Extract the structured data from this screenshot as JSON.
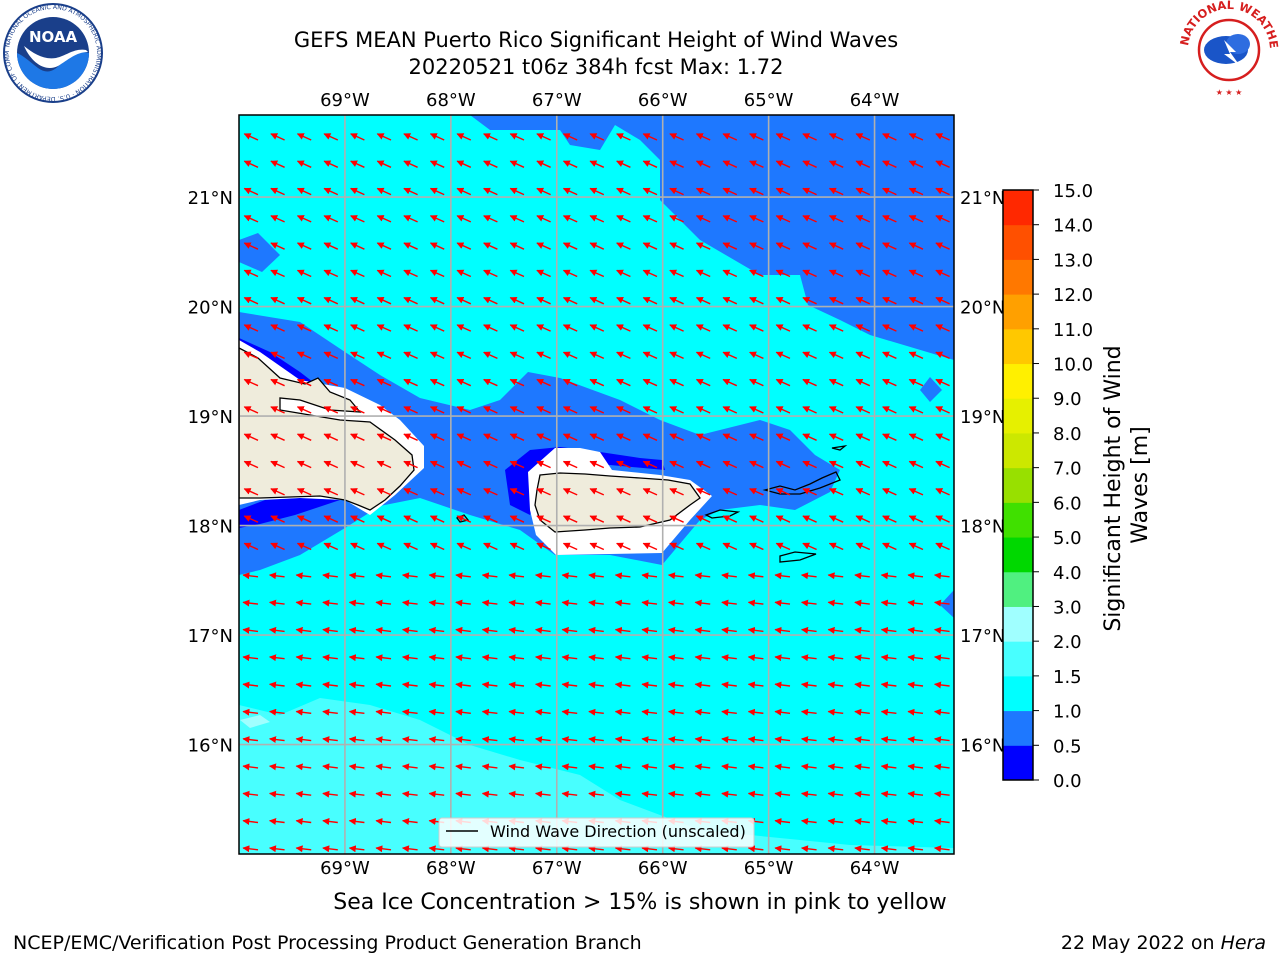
{
  "header": {
    "title_line1": "GEFS MEAN Puerto Rico Significant Height of Wind Waves",
    "title_line2": "20220521 t06z 384h fcst   Max: 1.72"
  },
  "logos": {
    "left": "noaa-logo",
    "left_text": "NOAA",
    "left_ring_text": "NATIONAL OCEANIC AND ATMOSPHERIC ADMINISTRATION · U.S. DEPARTMENT OF COMMERCE",
    "right": "nws-logo",
    "right_ring_text": "NATIONAL WEATHER SERVICE"
  },
  "map": {
    "lon_labels": [
      "69°W",
      "68°W",
      "67°W",
      "66°W",
      "65°W",
      "64°W"
    ],
    "lat_labels": [
      "21°N",
      "20°N",
      "19°N",
      "18°N",
      "17°N",
      "16°N"
    ],
    "lon_range": [
      -70.0,
      -63.25
    ],
    "lat_range": [
      15.0,
      21.75
    ],
    "vector_color": "#ff0000",
    "land_color": "#efecdc",
    "legend_label": "Wind Wave Direction (unscaled)"
  },
  "colorbar": {
    "label": "Significant Height of Wind Waves [m]",
    "ticks": [
      "0.0",
      "0.5",
      "1.0",
      "1.5",
      "2.0",
      "3.0",
      "4.0",
      "5.0",
      "6.0",
      "7.0",
      "8.0",
      "9.0",
      "10.0",
      "11.0",
      "12.0",
      "13.0",
      "14.0",
      "15.0"
    ],
    "colors": [
      "#0000ff",
      "#1e78ff",
      "#00ffff",
      "#48ffff",
      "#a0ffff",
      "#50f080",
      "#00d800",
      "#40e000",
      "#98e000",
      "#cce800",
      "#e6f000",
      "#fff000",
      "#ffc800",
      "#ffa000",
      "#ff7800",
      "#ff5000",
      "#ff2800",
      "#ff0000"
    ]
  },
  "footer": {
    "note": "Sea Ice Concentration > 15% is shown in pink to yellow",
    "left": "NCEP/EMC/Verification Post Processing Product Generation Branch",
    "right_prefix": "22 May 2022 on ",
    "right_host": "Hera"
  }
}
